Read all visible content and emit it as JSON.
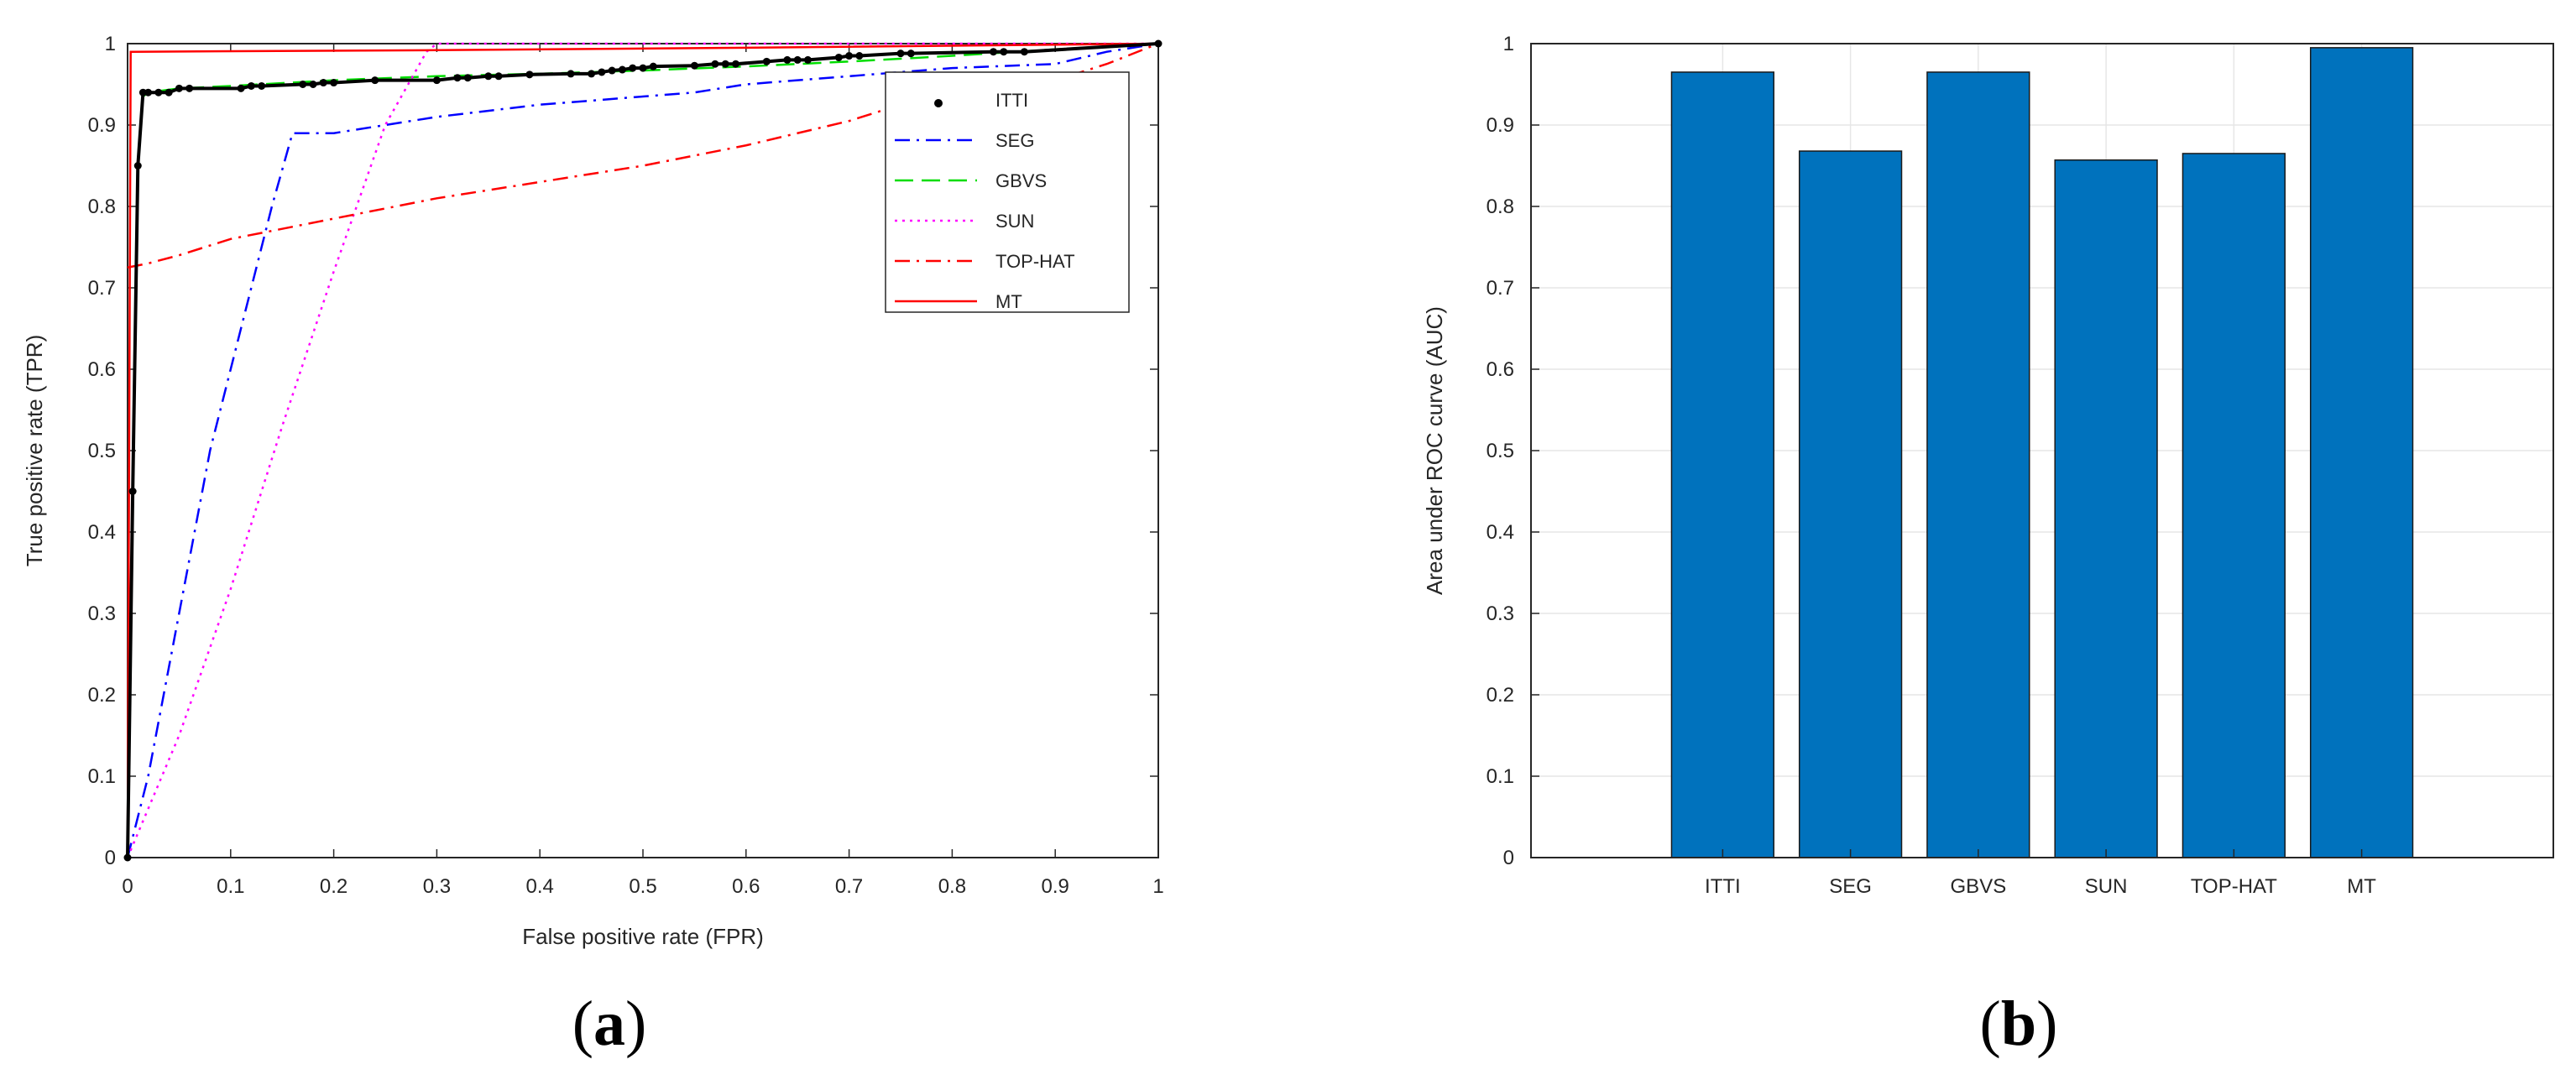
{
  "panels": {
    "a": {
      "open": "(",
      "letter": "a",
      "close": ")"
    },
    "b": {
      "open": "(",
      "letter": "b",
      "close": ")"
    }
  },
  "colors": {
    "ITTI": "#000000",
    "SEG": "#0000ff",
    "GBVS": "#00dd00",
    "SUN": "#ff00ff",
    "TOP-HAT": "#ff0000",
    "MT": "#ff0000",
    "bar": "#0072bd",
    "grid": "#e6e6e6",
    "axis": "#262626"
  },
  "chart_data": [
    {
      "type": "line",
      "title": "",
      "xlabel": "False positive rate (FPR)",
      "ylabel": "True positive rate (TPR)",
      "xlim": [
        0,
        1
      ],
      "ylim": [
        0,
        1
      ],
      "xticks": [
        "0",
        "0.1",
        "0.2",
        "0.3",
        "0.4",
        "0.5",
        "0.6",
        "0.7",
        "0.8",
        "0.9",
        "1"
      ],
      "yticks": [
        "0",
        "0.1",
        "0.2",
        "0.3",
        "0.4",
        "0.5",
        "0.6",
        "0.7",
        "0.8",
        "0.9",
        "1"
      ],
      "grid": false,
      "legend": "top-right",
      "series": [
        {
          "name": "ITTI",
          "style": "dots",
          "x": [
            0,
            0.005,
            0.01,
            0.015,
            0.02,
            0.03,
            0.04,
            0.05,
            0.06,
            0.11,
            0.12,
            0.13,
            0.17,
            0.18,
            0.19,
            0.2,
            0.24,
            0.3,
            0.32,
            0.33,
            0.35,
            0.36,
            0.39,
            0.43,
            0.45,
            0.46,
            0.47,
            0.48,
            0.49,
            0.5,
            0.51,
            0.55,
            0.57,
            0.58,
            0.59,
            0.62,
            0.64,
            0.65,
            0.66,
            0.69,
            0.7,
            0.71,
            0.75,
            0.76,
            0.84,
            0.85,
            0.87,
            1.0
          ],
          "y": [
            0,
            0.45,
            0.85,
            0.94,
            0.94,
            0.94,
            0.94,
            0.945,
            0.945,
            0.945,
            0.948,
            0.948,
            0.95,
            0.95,
            0.952,
            0.952,
            0.955,
            0.955,
            0.958,
            0.958,
            0.96,
            0.96,
            0.962,
            0.963,
            0.963,
            0.965,
            0.967,
            0.968,
            0.97,
            0.97,
            0.972,
            0.973,
            0.975,
            0.975,
            0.975,
            0.978,
            0.98,
            0.98,
            0.98,
            0.983,
            0.985,
            0.985,
            0.988,
            0.988,
            0.99,
            0.99,
            0.99,
            1.0
          ]
        },
        {
          "name": "SEG",
          "style": "dashdot",
          "x": [
            0,
            0.02,
            0.05,
            0.08,
            0.11,
            0.14,
            0.16,
            0.17,
            0.2,
            0.25,
            0.3,
            0.4,
            0.5,
            0.55,
            0.6,
            0.7,
            0.8,
            0.9,
            0.95,
            1.0
          ],
          "y": [
            0,
            0.1,
            0.3,
            0.5,
            0.65,
            0.8,
            0.89,
            0.89,
            0.89,
            0.9,
            0.91,
            0.925,
            0.935,
            0.94,
            0.95,
            0.96,
            0.97,
            0.975,
            0.99,
            1.0
          ]
        },
        {
          "name": "GBVS",
          "style": "dash",
          "x": [
            0,
            0.005,
            0.01,
            0.015,
            0.02,
            0.05,
            0.1,
            0.2,
            0.3,
            0.4,
            0.5,
            0.6,
            0.7,
            0.8,
            0.9,
            1.0
          ],
          "y": [
            0,
            0.45,
            0.85,
            0.935,
            0.94,
            0.945,
            0.948,
            0.955,
            0.96,
            0.963,
            0.967,
            0.972,
            0.978,
            0.985,
            0.993,
            1.0
          ]
        },
        {
          "name": "SUN",
          "style": "dot",
          "x": [
            0,
            0.05,
            0.1,
            0.15,
            0.2,
            0.25,
            0.29,
            0.3,
            0.5,
            0.8,
            1.0
          ],
          "y": [
            0,
            0.15,
            0.33,
            0.53,
            0.72,
            0.9,
            0.99,
            1.0,
            1.0,
            1.0,
            1.0
          ]
        },
        {
          "name": "TOP-HAT",
          "style": "dashdot",
          "x": [
            0,
            0.02,
            0.05,
            0.1,
            0.2,
            0.3,
            0.4,
            0.5,
            0.6,
            0.7,
            0.75,
            0.8,
            0.9,
            0.95,
            1.0
          ],
          "y": [
            0.725,
            0.73,
            0.74,
            0.76,
            0.785,
            0.81,
            0.83,
            0.85,
            0.875,
            0.905,
            0.925,
            0.94,
            0.955,
            0.975,
            1.0
          ]
        },
        {
          "name": "MT",
          "style": "solid",
          "x": [
            0,
            0.003,
            0.005,
            0.3,
            0.6,
            1.0
          ],
          "y": [
            0,
            0.99,
            0.99,
            0.992,
            0.995,
            1.0
          ]
        }
      ]
    },
    {
      "type": "bar",
      "title": "",
      "xlabel": "",
      "ylabel": "Area under ROC curve (AUC)",
      "ylim": [
        0,
        1
      ],
      "yticks": [
        "0",
        "0.1",
        "0.2",
        "0.3",
        "0.4",
        "0.5",
        "0.6",
        "0.7",
        "0.8",
        "0.9",
        "1"
      ],
      "grid": true,
      "categories": [
        "ITTI",
        "SEG",
        "GBVS",
        "SUN",
        "TOP-HAT",
        "MT"
      ],
      "values": [
        0.965,
        0.868,
        0.965,
        0.857,
        0.865,
        0.995
      ]
    }
  ]
}
